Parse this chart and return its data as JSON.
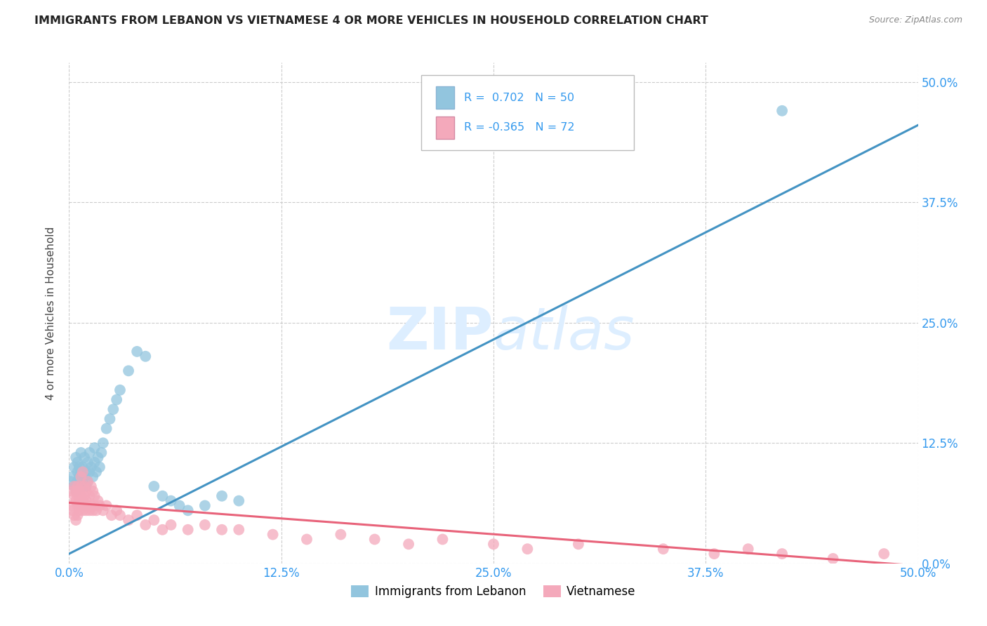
{
  "title": "IMMIGRANTS FROM LEBANON VS VIETNAMESE 4 OR MORE VEHICLES IN HOUSEHOLD CORRELATION CHART",
  "source": "Source: ZipAtlas.com",
  "ylabel": "4 or more Vehicles in Household",
  "xlim": [
    0.0,
    0.5
  ],
  "ylim": [
    0.0,
    0.52
  ],
  "xtick_labels": [
    "0.0%",
    "12.5%",
    "25.0%",
    "37.5%",
    "50.0%"
  ],
  "xtick_vals": [
    0.0,
    0.125,
    0.25,
    0.375,
    0.5
  ],
  "ytick_labels_right": [
    "50.0%",
    "37.5%",
    "25.0%",
    "12.5%",
    "0.0%"
  ],
  "ytick_vals": [
    0.5,
    0.375,
    0.25,
    0.125,
    0.0
  ],
  "legend_bottom_label1": "Immigrants from Lebanon",
  "legend_bottom_label2": "Vietnamese",
  "blue_color": "#92c5de",
  "pink_color": "#f4a9bb",
  "blue_line_color": "#4393c3",
  "pink_line_color": "#e8637a",
  "watermark_color": "#ddeeff",
  "background_color": "#ffffff",
  "grid_color": "#cccccc",
  "blue_R": 0.702,
  "blue_N": 50,
  "pink_R": -0.365,
  "pink_N": 72,
  "blue_scatter_x": [
    0.001,
    0.002,
    0.003,
    0.003,
    0.004,
    0.004,
    0.005,
    0.005,
    0.005,
    0.006,
    0.006,
    0.007,
    0.007,
    0.007,
    0.008,
    0.008,
    0.009,
    0.009,
    0.01,
    0.01,
    0.011,
    0.011,
    0.012,
    0.012,
    0.013,
    0.014,
    0.015,
    0.015,
    0.016,
    0.017,
    0.018,
    0.019,
    0.02,
    0.022,
    0.024,
    0.026,
    0.028,
    0.03,
    0.035,
    0.04,
    0.045,
    0.05,
    0.055,
    0.06,
    0.065,
    0.07,
    0.08,
    0.09,
    0.1,
    0.42
  ],
  "blue_scatter_y": [
    0.085,
    0.09,
    0.1,
    0.08,
    0.11,
    0.075,
    0.095,
    0.105,
    0.085,
    0.09,
    0.1,
    0.08,
    0.095,
    0.115,
    0.085,
    0.1,
    0.09,
    0.11,
    0.08,
    0.095,
    0.105,
    0.085,
    0.115,
    0.095,
    0.1,
    0.09,
    0.105,
    0.12,
    0.095,
    0.11,
    0.1,
    0.115,
    0.125,
    0.14,
    0.15,
    0.16,
    0.17,
    0.18,
    0.2,
    0.22,
    0.215,
    0.08,
    0.07,
    0.065,
    0.06,
    0.055,
    0.06,
    0.07,
    0.065,
    0.47
  ],
  "pink_scatter_x": [
    0.001,
    0.002,
    0.002,
    0.003,
    0.003,
    0.003,
    0.004,
    0.004,
    0.004,
    0.005,
    0.005,
    0.005,
    0.005,
    0.006,
    0.006,
    0.006,
    0.007,
    0.007,
    0.007,
    0.007,
    0.008,
    0.008,
    0.008,
    0.009,
    0.009,
    0.009,
    0.01,
    0.01,
    0.01,
    0.011,
    0.011,
    0.012,
    0.012,
    0.013,
    0.013,
    0.014,
    0.014,
    0.015,
    0.015,
    0.016,
    0.017,
    0.018,
    0.02,
    0.022,
    0.025,
    0.028,
    0.03,
    0.035,
    0.04,
    0.045,
    0.05,
    0.055,
    0.06,
    0.07,
    0.08,
    0.09,
    0.1,
    0.12,
    0.14,
    0.16,
    0.18,
    0.2,
    0.22,
    0.25,
    0.27,
    0.3,
    0.35,
    0.38,
    0.4,
    0.42,
    0.45,
    0.48
  ],
  "pink_scatter_y": [
    0.06,
    0.075,
    0.055,
    0.07,
    0.08,
    0.05,
    0.065,
    0.075,
    0.045,
    0.06,
    0.07,
    0.08,
    0.05,
    0.065,
    0.075,
    0.055,
    0.06,
    0.07,
    0.08,
    0.09,
    0.055,
    0.065,
    0.095,
    0.06,
    0.07,
    0.08,
    0.055,
    0.065,
    0.075,
    0.06,
    0.085,
    0.055,
    0.07,
    0.06,
    0.08,
    0.055,
    0.075,
    0.06,
    0.07,
    0.055,
    0.065,
    0.06,
    0.055,
    0.06,
    0.05,
    0.055,
    0.05,
    0.045,
    0.05,
    0.04,
    0.045,
    0.035,
    0.04,
    0.035,
    0.04,
    0.035,
    0.035,
    0.03,
    0.025,
    0.03,
    0.025,
    0.02,
    0.025,
    0.02,
    0.015,
    0.02,
    0.015,
    0.01,
    0.015,
    0.01,
    0.005,
    0.01
  ]
}
